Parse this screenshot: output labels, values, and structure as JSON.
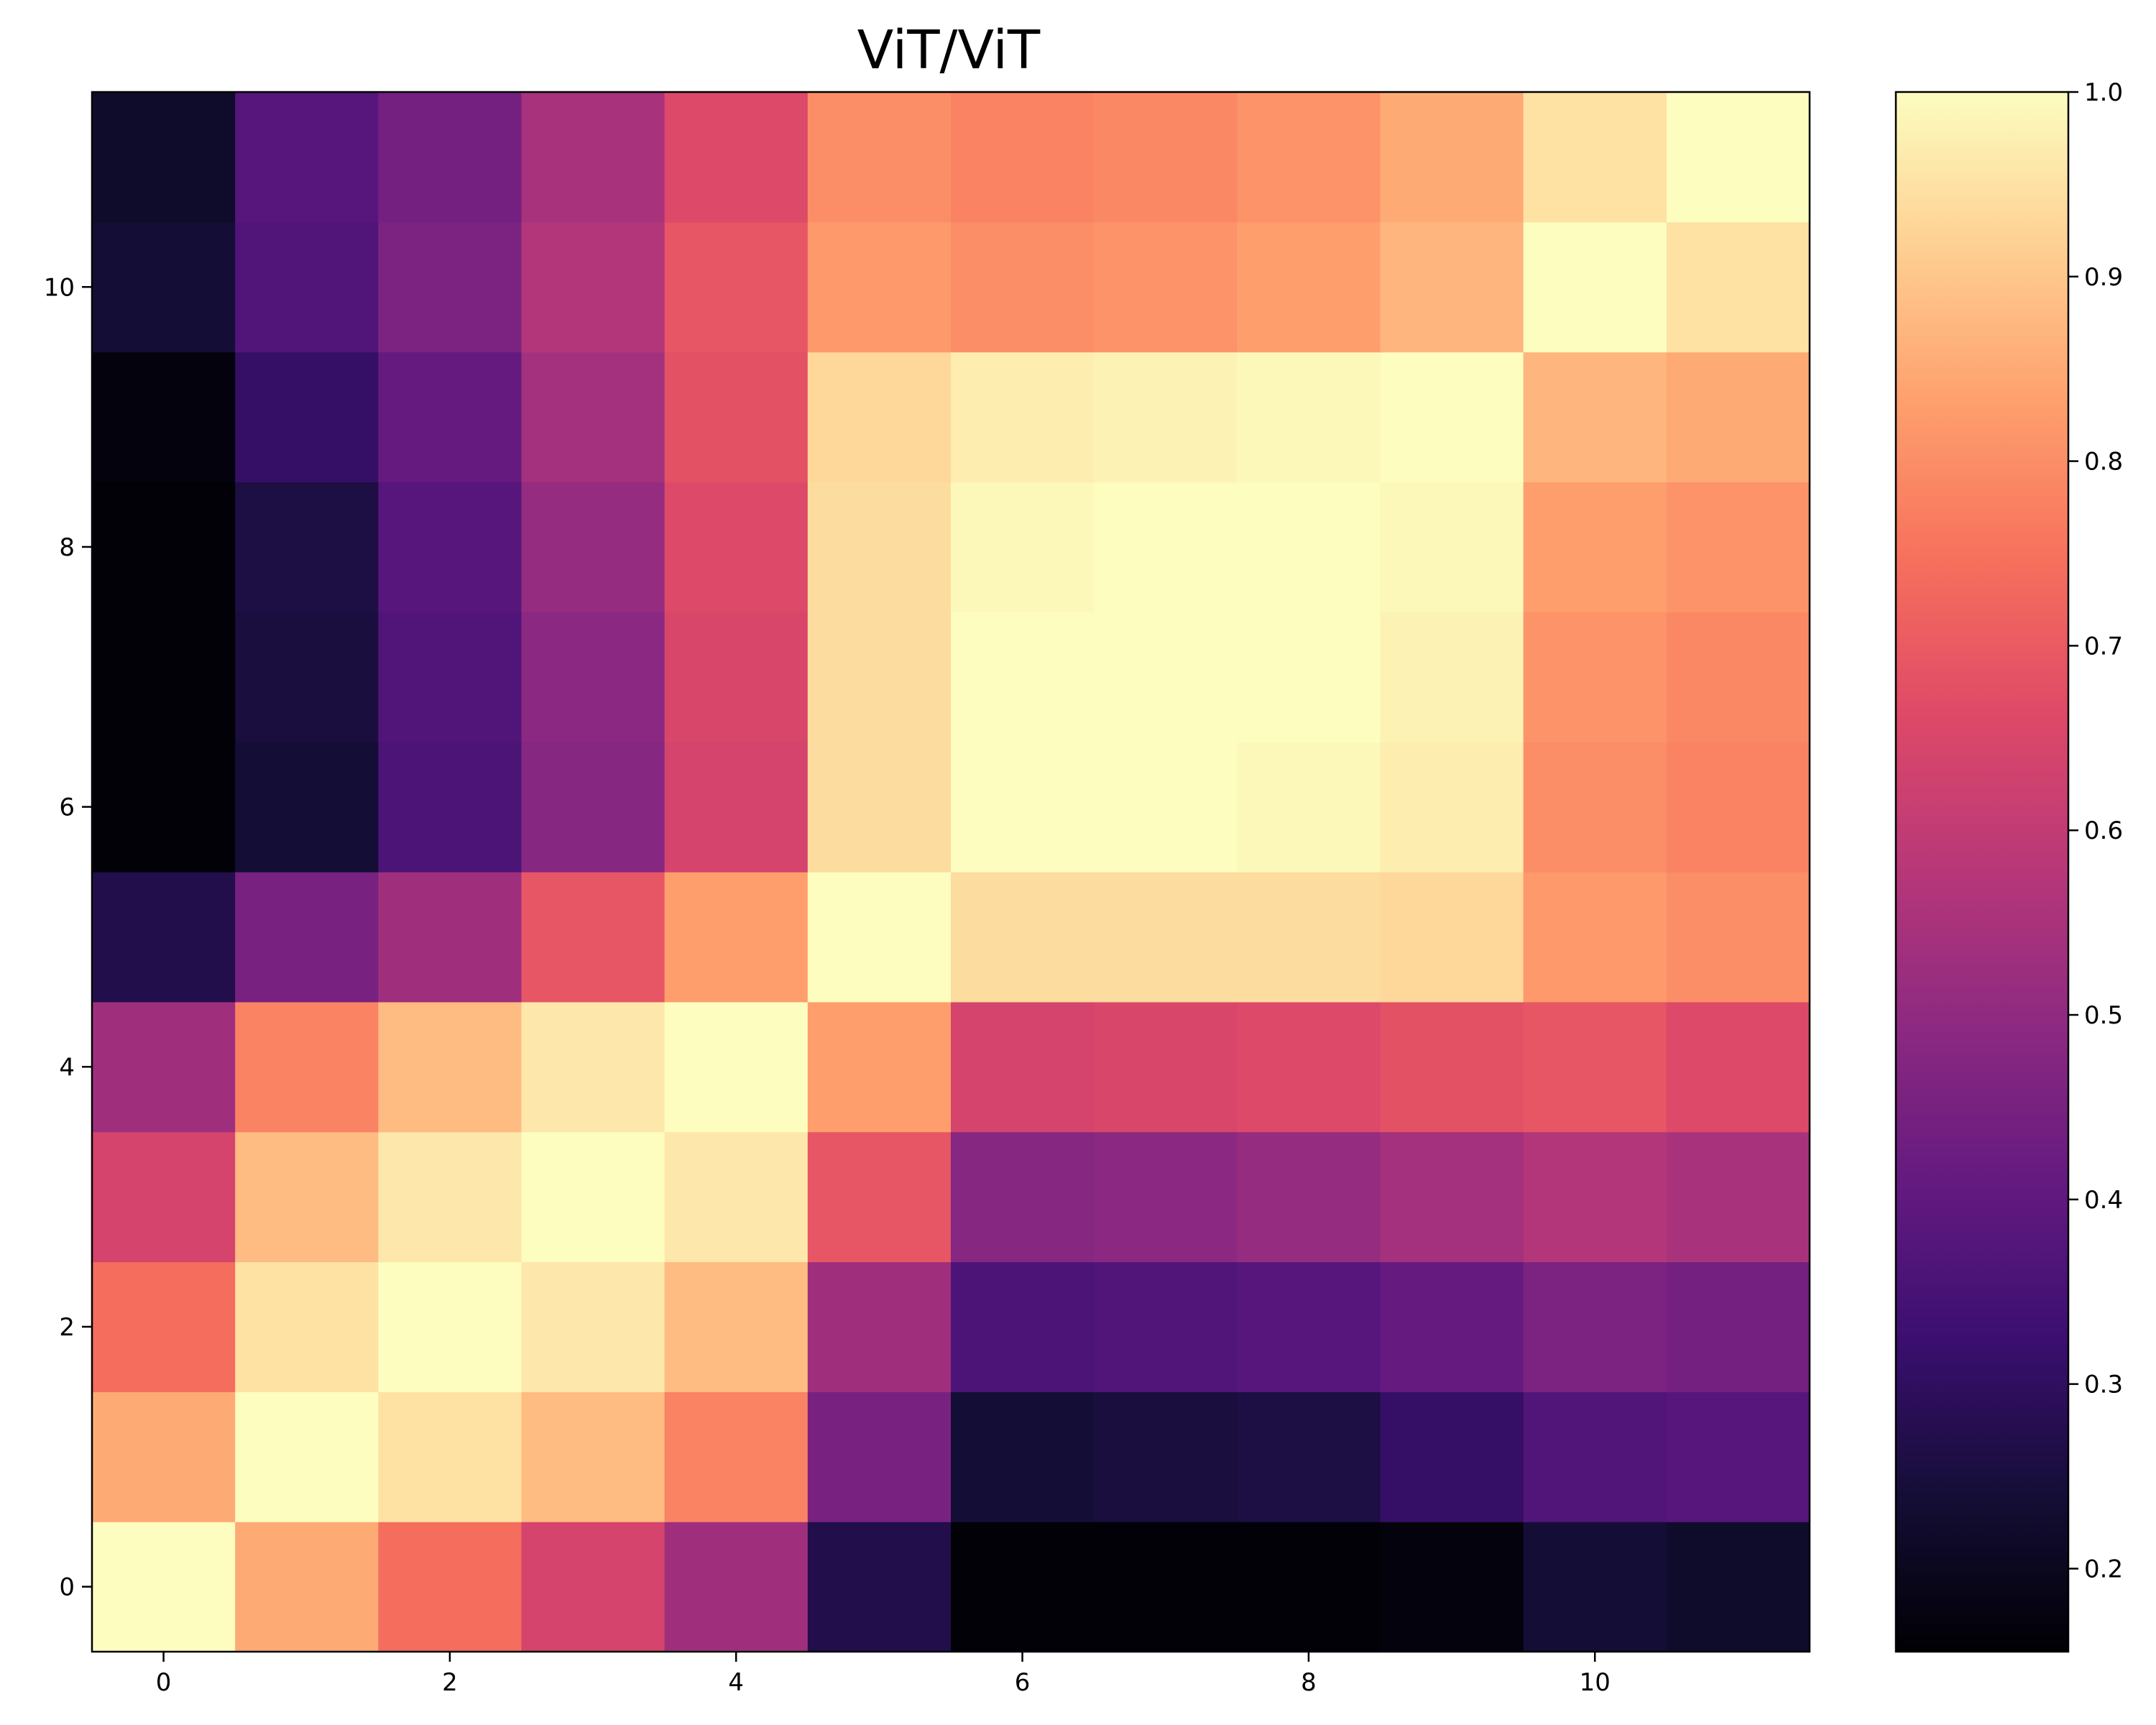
{
  "chart_data": {
    "type": "heatmap",
    "title": "ViT/ViT",
    "xlabel": "",
    "ylabel": "",
    "colormap": "magma",
    "n": 12,
    "xlim": [
      -0.5,
      11.5
    ],
    "ylim": [
      -0.5,
      11.5
    ],
    "x_ticks": [
      0,
      2,
      4,
      6,
      8,
      10
    ],
    "y_ticks": [
      0,
      2,
      4,
      6,
      8,
      10
    ],
    "colorbar": {
      "range": [
        0.155,
        1.0
      ],
      "ticks": [
        0.2,
        0.3,
        0.4,
        0.5,
        0.6,
        0.7,
        0.8,
        0.9,
        1.0
      ],
      "tick_labels": [
        "0.2",
        "0.3",
        "0.4",
        "0.5",
        "0.6",
        "0.7",
        "0.8",
        "0.9",
        "1.0"
      ],
      "position": "right"
    },
    "grid": false,
    "values": [
      [
        1.0,
        0.85,
        0.74,
        0.64,
        0.53,
        0.27,
        0.16,
        0.16,
        0.16,
        0.17,
        0.24,
        0.22
      ],
      [
        0.85,
        1.0,
        0.95,
        0.88,
        0.78,
        0.45,
        0.24,
        0.25,
        0.26,
        0.31,
        0.37,
        0.38
      ],
      [
        0.74,
        0.95,
        1.0,
        0.96,
        0.88,
        0.53,
        0.36,
        0.37,
        0.38,
        0.41,
        0.46,
        0.44
      ],
      [
        0.64,
        0.88,
        0.96,
        1.0,
        0.96,
        0.69,
        0.48,
        0.49,
        0.51,
        0.54,
        0.57,
        0.55
      ],
      [
        0.53,
        0.78,
        0.88,
        0.96,
        1.0,
        0.83,
        0.64,
        0.65,
        0.66,
        0.68,
        0.69,
        0.66
      ],
      [
        0.27,
        0.45,
        0.53,
        0.69,
        0.83,
        1.0,
        0.94,
        0.94,
        0.94,
        0.93,
        0.82,
        0.8
      ],
      [
        0.16,
        0.24,
        0.36,
        0.48,
        0.64,
        0.94,
        1.0,
        1.0,
        0.99,
        0.97,
        0.8,
        0.78
      ],
      [
        0.16,
        0.25,
        0.37,
        0.49,
        0.65,
        0.94,
        1.0,
        1.0,
        1.0,
        0.98,
        0.81,
        0.79
      ],
      [
        0.16,
        0.26,
        0.38,
        0.51,
        0.66,
        0.94,
        0.99,
        1.0,
        1.0,
        0.99,
        0.83,
        0.81
      ],
      [
        0.17,
        0.31,
        0.41,
        0.54,
        0.68,
        0.93,
        0.97,
        0.98,
        0.99,
        1.0,
        0.87,
        0.85
      ],
      [
        0.24,
        0.37,
        0.46,
        0.57,
        0.69,
        0.82,
        0.8,
        0.81,
        0.83,
        0.87,
        1.0,
        0.95
      ],
      [
        0.22,
        0.38,
        0.44,
        0.55,
        0.66,
        0.8,
        0.78,
        0.79,
        0.81,
        0.85,
        0.95,
        1.0
      ]
    ]
  }
}
